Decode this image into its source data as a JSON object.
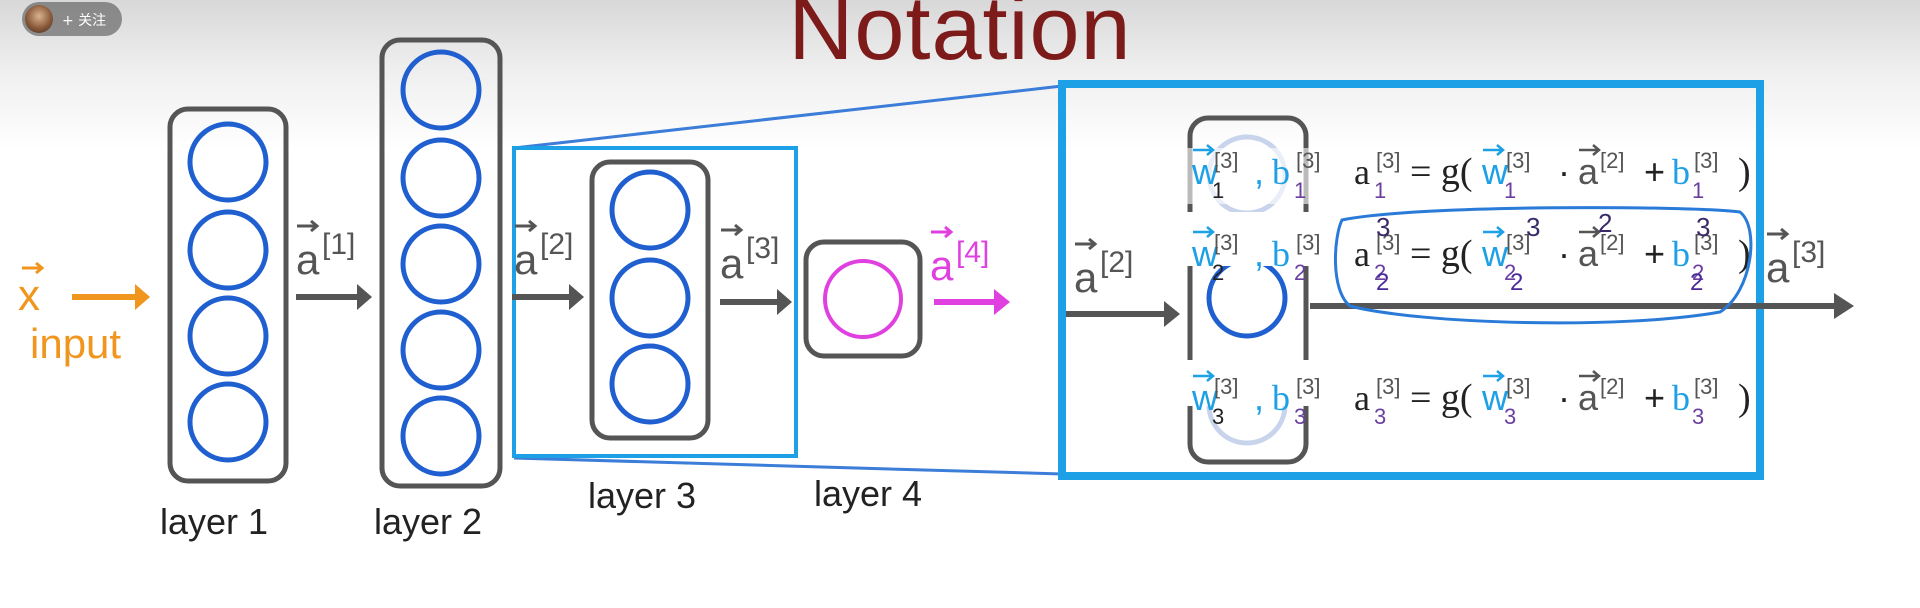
{
  "slide": {
    "title": "Notation",
    "follow_button": "+ 关注"
  },
  "input": {
    "vector": "x",
    "label": "input"
  },
  "layers": [
    {
      "label": "layer 1",
      "units": 4
    },
    {
      "label": "layer 2",
      "units": 5
    },
    {
      "label": "layer 3",
      "units": 3
    },
    {
      "label": "layer 4",
      "units": 1
    }
  ],
  "activations": [
    {
      "symbol": "a",
      "superscript": "[1]"
    },
    {
      "symbol": "a",
      "superscript": "[2]"
    },
    {
      "symbol": "a",
      "superscript": "[3]"
    },
    {
      "symbol": "a",
      "superscript": "[4]"
    }
  ],
  "detail": {
    "input_activation": {
      "symbol": "a",
      "superscript": "[2]"
    },
    "output_activation": {
      "symbol": "a",
      "superscript": "[3]"
    },
    "units": [
      {
        "w": "w",
        "sub": "1",
        "sup": "[3]",
        "b": "b",
        "eq_lhs": "a",
        "eq_sub": "1",
        "eq_sup": "[3]",
        "eq_rhs_prev": "[2]"
      },
      {
        "w": "w",
        "sub": "2",
        "sup": "[3]",
        "b": "b",
        "eq_lhs": "a",
        "eq_sub": "2",
        "eq_sup": "[3]",
        "eq_rhs_prev": "[2]"
      },
      {
        "w": "w",
        "sub": "3",
        "sup": "[3]",
        "b": "b",
        "eq_lhs": "a",
        "eq_sub": "3",
        "eq_sup": "[3]",
        "eq_rhs_prev": "[2]"
      }
    ],
    "handwritten": {
      "sub": "2",
      "sup": "3",
      "prev": "2"
    }
  },
  "colors": {
    "title": "#7d1a1a",
    "input": "#f0961e",
    "neuron": "#1f5fcf",
    "output_neuron": "#e040e0",
    "highlight_box": "#1ea0e6",
    "layer_box": "#555555",
    "arrow": "#555555",
    "w_blue": "#1ea0e6",
    "b_purple": "#6a3fa0",
    "ink": "#2a7ad8"
  }
}
